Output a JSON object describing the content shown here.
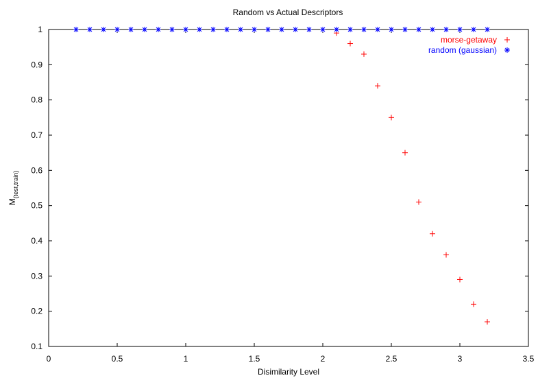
{
  "chart_data": {
    "type": "scatter",
    "title": "Random vs Actual Descriptors",
    "xlabel": "Disimilarity Level",
    "ylabel": "M",
    "ylabel_subscript": "(test,train)",
    "xlim": [
      0,
      3.5
    ],
    "ylim": [
      0.1,
      1
    ],
    "x_ticks": [
      "0",
      "0.5",
      "1",
      "1.5",
      "2",
      "2.5",
      "3",
      "3.5"
    ],
    "y_ticks": [
      "0.1",
      "0.2",
      "0.3",
      "0.4",
      "0.5",
      "0.6",
      "0.7",
      "0.8",
      "0.9",
      "1"
    ],
    "grid": false,
    "legend_position": "top-right",
    "series": [
      {
        "name": "morse-getaway",
        "color": "#ff0000",
        "marker": "plus",
        "points": [
          [
            0.2,
            1
          ],
          [
            0.3,
            1
          ],
          [
            0.4,
            1
          ],
          [
            0.5,
            1
          ],
          [
            0.6,
            1
          ],
          [
            0.7,
            1
          ],
          [
            0.8,
            1
          ],
          [
            0.9,
            1
          ],
          [
            1.0,
            1
          ],
          [
            1.1,
            1
          ],
          [
            1.2,
            1
          ],
          [
            1.3,
            1
          ],
          [
            1.4,
            1
          ],
          [
            1.5,
            1
          ],
          [
            1.6,
            1
          ],
          [
            1.7,
            1
          ],
          [
            1.8,
            1
          ],
          [
            1.9,
            1
          ],
          [
            2.0,
            1
          ],
          [
            2.1,
            0.99
          ],
          [
            2.2,
            0.96
          ],
          [
            2.3,
            0.93
          ],
          [
            2.4,
            0.84
          ],
          [
            2.5,
            0.75
          ],
          [
            2.6,
            0.65
          ],
          [
            2.7,
            0.51
          ],
          [
            2.8,
            0.42
          ],
          [
            2.9,
            0.36
          ],
          [
            3.0,
            0.29
          ],
          [
            3.1,
            0.22
          ],
          [
            3.2,
            0.17
          ]
        ]
      },
      {
        "name": "random (gaussian)",
        "color": "#0000ff",
        "marker": "star",
        "points": [
          [
            0.2,
            1
          ],
          [
            0.3,
            1
          ],
          [
            0.4,
            1
          ],
          [
            0.5,
            1
          ],
          [
            0.6,
            1
          ],
          [
            0.7,
            1
          ],
          [
            0.8,
            1
          ],
          [
            0.9,
            1
          ],
          [
            1.0,
            1
          ],
          [
            1.1,
            1
          ],
          [
            1.2,
            1
          ],
          [
            1.3,
            1
          ],
          [
            1.4,
            1
          ],
          [
            1.5,
            1
          ],
          [
            1.6,
            1
          ],
          [
            1.7,
            1
          ],
          [
            1.8,
            1
          ],
          [
            1.9,
            1
          ],
          [
            2.0,
            1
          ],
          [
            2.1,
            1
          ],
          [
            2.2,
            1
          ],
          [
            2.3,
            1
          ],
          [
            2.4,
            1
          ],
          [
            2.5,
            1
          ],
          [
            2.6,
            1
          ],
          [
            2.7,
            1
          ],
          [
            2.8,
            1
          ],
          [
            2.9,
            1
          ],
          [
            3.0,
            1
          ],
          [
            3.1,
            1
          ],
          [
            3.2,
            1
          ]
        ]
      }
    ]
  }
}
